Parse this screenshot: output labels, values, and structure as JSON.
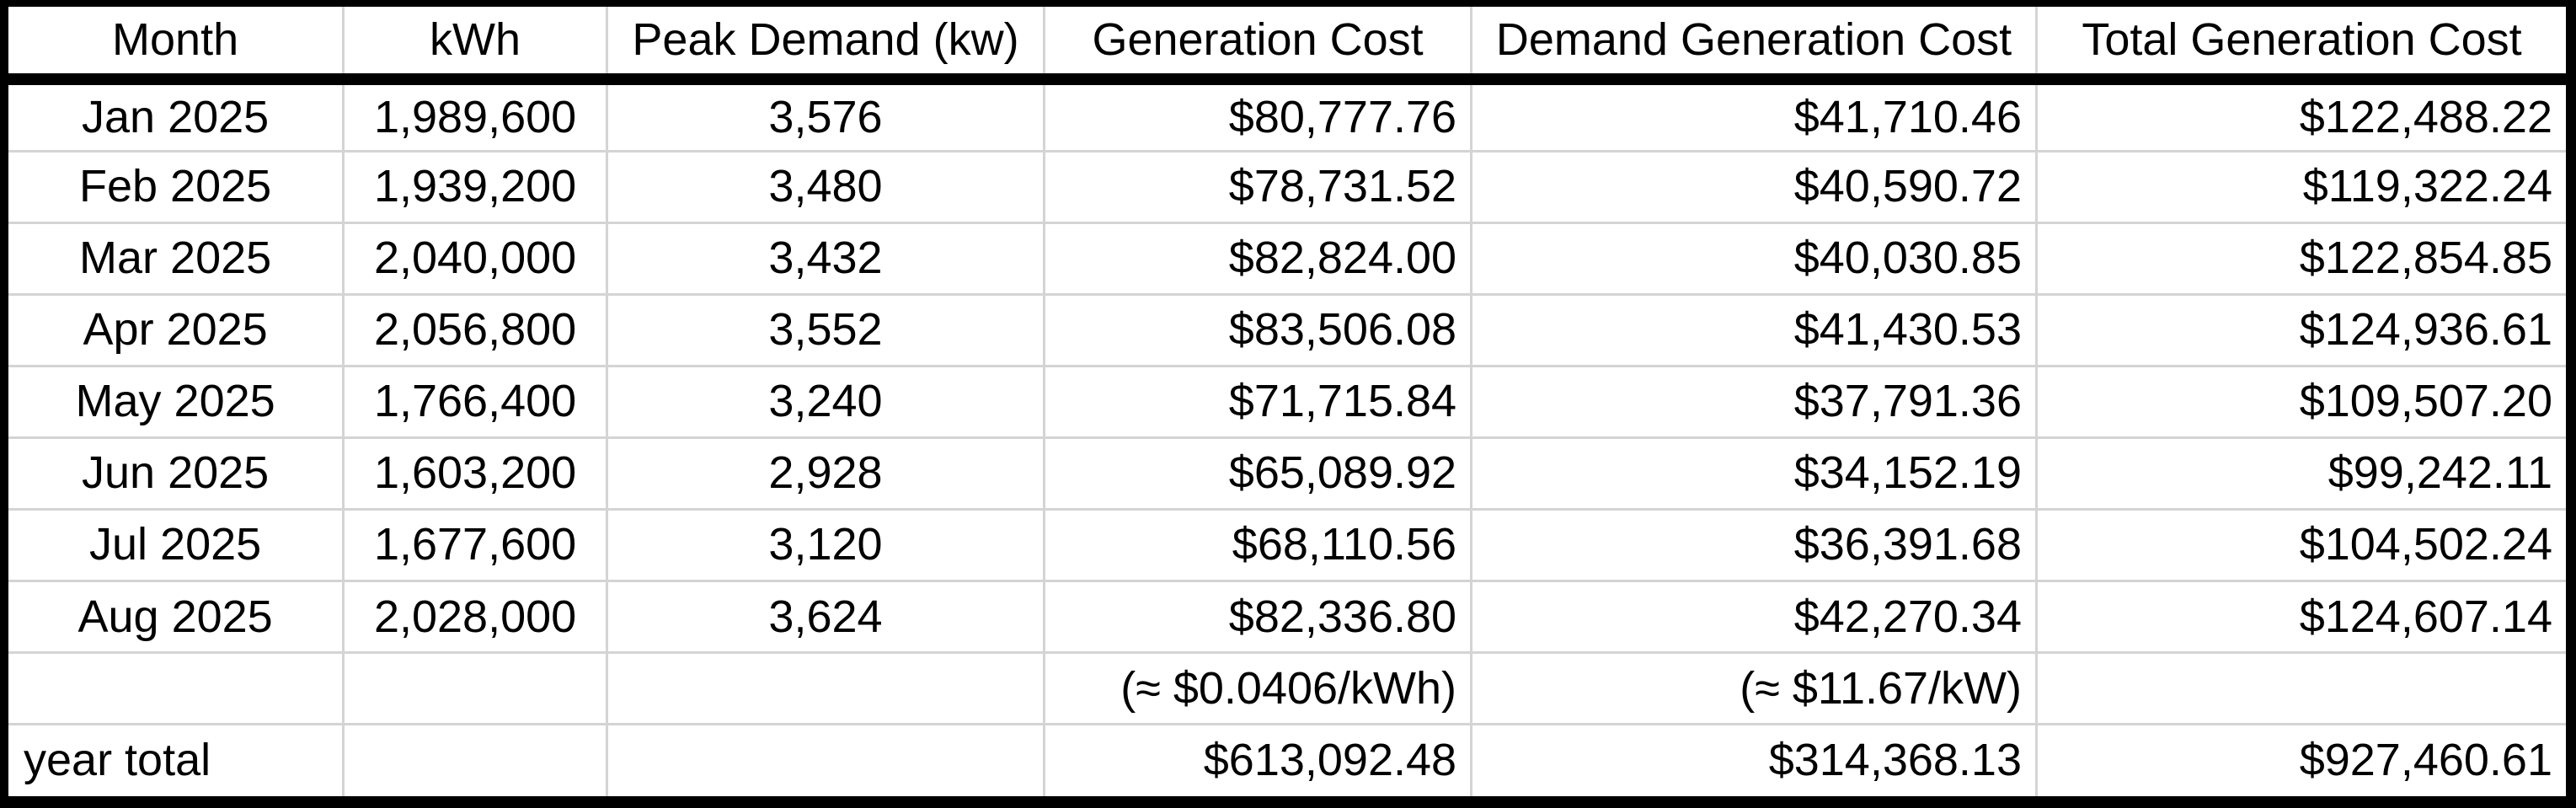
{
  "table": {
    "columns": [
      {
        "key": "month",
        "label": "Month",
        "align": "center",
        "width_pct": 13.1
      },
      {
        "key": "kwh",
        "label": "kWh",
        "align": "center",
        "width_pct": 10.3
      },
      {
        "key": "peak-demand",
        "label": "Peak Demand (kw)",
        "align": "center",
        "width_pct": 17.1
      },
      {
        "key": "generation-cost",
        "label": "Generation Cost",
        "align": "right",
        "width_pct": 16.7
      },
      {
        "key": "demand-generation-cost",
        "label": "Demand Generation Cost",
        "align": "right",
        "width_pct": 22.1
      },
      {
        "key": "total-generation-cost",
        "label": "Total Generation Cost",
        "align": "right",
        "width_pct": 20.7
      }
    ],
    "rows": [
      [
        "Jan 2025",
        "1,989,600",
        "3,576",
        "$80,777.76",
        "$41,710.46",
        "$122,488.22"
      ],
      [
        "Feb 2025",
        "1,939,200",
        "3,480",
        "$78,731.52",
        "$40,590.72",
        "$119,322.24"
      ],
      [
        "Mar 2025",
        "2,040,000",
        "3,432",
        "$82,824.00",
        "$40,030.85",
        "$122,854.85"
      ],
      [
        "Apr 2025",
        "2,056,800",
        "3,552",
        "$83,506.08",
        "$41,430.53",
        "$124,936.61"
      ],
      [
        "May 2025",
        "1,766,400",
        "3,240",
        "$71,715.84",
        "$37,791.36",
        "$109,507.20"
      ],
      [
        "Jun 2025",
        "1,603,200",
        "2,928",
        "$65,089.92",
        "$34,152.19",
        "$99,242.11"
      ],
      [
        "Jul 2025",
        "1,677,600",
        "3,120",
        "$68,110.56",
        "$36,391.68",
        "$104,502.24"
      ],
      [
        "Aug 2025",
        "2,028,000",
        "3,624",
        "$82,336.80",
        "$42,270.34",
        "$124,607.14"
      ],
      [
        "",
        "",
        "",
        "(≈ $0.0406/kWh)",
        "(≈ $11.67/kW)",
        ""
      ],
      [
        "year total",
        "",
        "",
        "$613,092.48",
        "$314,368.13",
        "$927,460.61"
      ]
    ]
  },
  "chart_data": {
    "type": "table",
    "columns": [
      "Month",
      "kWh",
      "Peak Demand (kw)",
      "Generation Cost",
      "Demand Generation Cost",
      "Total Generation Cost"
    ],
    "months": [
      "Jan 2025",
      "Feb 2025",
      "Mar 2025",
      "Apr 2025",
      "May 2025",
      "Jun 2025",
      "Jul 2025",
      "Aug 2025"
    ],
    "series": [
      {
        "name": "kWh",
        "values": [
          1989600,
          1939200,
          2040000,
          2056800,
          1766400,
          1603200,
          1677600,
          2028000
        ]
      },
      {
        "name": "Peak Demand (kw)",
        "values": [
          3576,
          3480,
          3432,
          3552,
          3240,
          2928,
          3120,
          3624
        ]
      },
      {
        "name": "Generation Cost",
        "values": [
          80777.76,
          78731.52,
          82824.0,
          83506.08,
          71715.84,
          65089.92,
          68110.56,
          82336.8
        ]
      },
      {
        "name": "Demand Generation Cost",
        "values": [
          41710.46,
          40590.72,
          40030.85,
          41430.53,
          37791.36,
          34152.19,
          36391.68,
          42270.34
        ]
      },
      {
        "name": "Total Generation Cost",
        "values": [
          122488.22,
          119322.24,
          122854.85,
          124936.61,
          109507.2,
          99242.11,
          104502.24,
          124607.14
        ]
      }
    ],
    "rate_annotations": {
      "generation_cost": "(≈ $0.0406/kWh)",
      "demand_generation_cost": "(≈ $11.67/kW)"
    },
    "year_total": {
      "label": "year total",
      "generation_cost": "$613,092.48",
      "demand_generation_cost": "$314,368.13",
      "total_generation_cost": "$927,460.61"
    }
  },
  "colors": {
    "border": "#000000",
    "gridline": "#d4d4d4",
    "background": "#ffffff",
    "text": "#000000"
  }
}
